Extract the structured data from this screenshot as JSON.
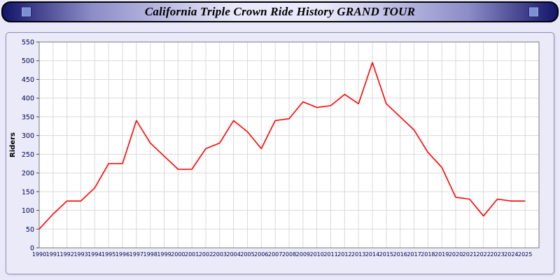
{
  "header": {
    "title": "California Triple Crown Ride History GRAND TOUR"
  },
  "chart_data": {
    "type": "line",
    "title": "California Triple Crown Ride History GRAND TOUR",
    "x": [
      1990,
      1991,
      1992,
      1993,
      1994,
      1995,
      1996,
      1997,
      1998,
      1999,
      2000,
      2001,
      2002,
      2003,
      2004,
      2005,
      2006,
      2007,
      2008,
      2009,
      2010,
      2011,
      2012,
      2013,
      2014,
      2015,
      2016,
      2017,
      2018,
      2019,
      2020,
      2021,
      2022,
      2023,
      2024,
      2025
    ],
    "values": [
      50,
      90,
      125,
      125,
      160,
      225,
      225,
      340,
      280,
      245,
      210,
      210,
      265,
      280,
      340,
      310,
      265,
      340,
      345,
      390,
      375,
      380,
      410,
      385,
      495,
      385,
      350,
      315,
      255,
      215,
      135,
      130,
      85,
      130,
      125,
      125
    ],
    "xlabel": "",
    "ylabel": "Riders",
    "ylim": [
      0,
      550
    ],
    "ytick_step": 50,
    "grid": true,
    "legend": "none",
    "line_color": "#ff0000",
    "grid_color": "#d9d9d9",
    "axis_text_color": "#00004d",
    "plot_bg": "#ffffff",
    "plot_border_color": "#7a7a7a"
  }
}
